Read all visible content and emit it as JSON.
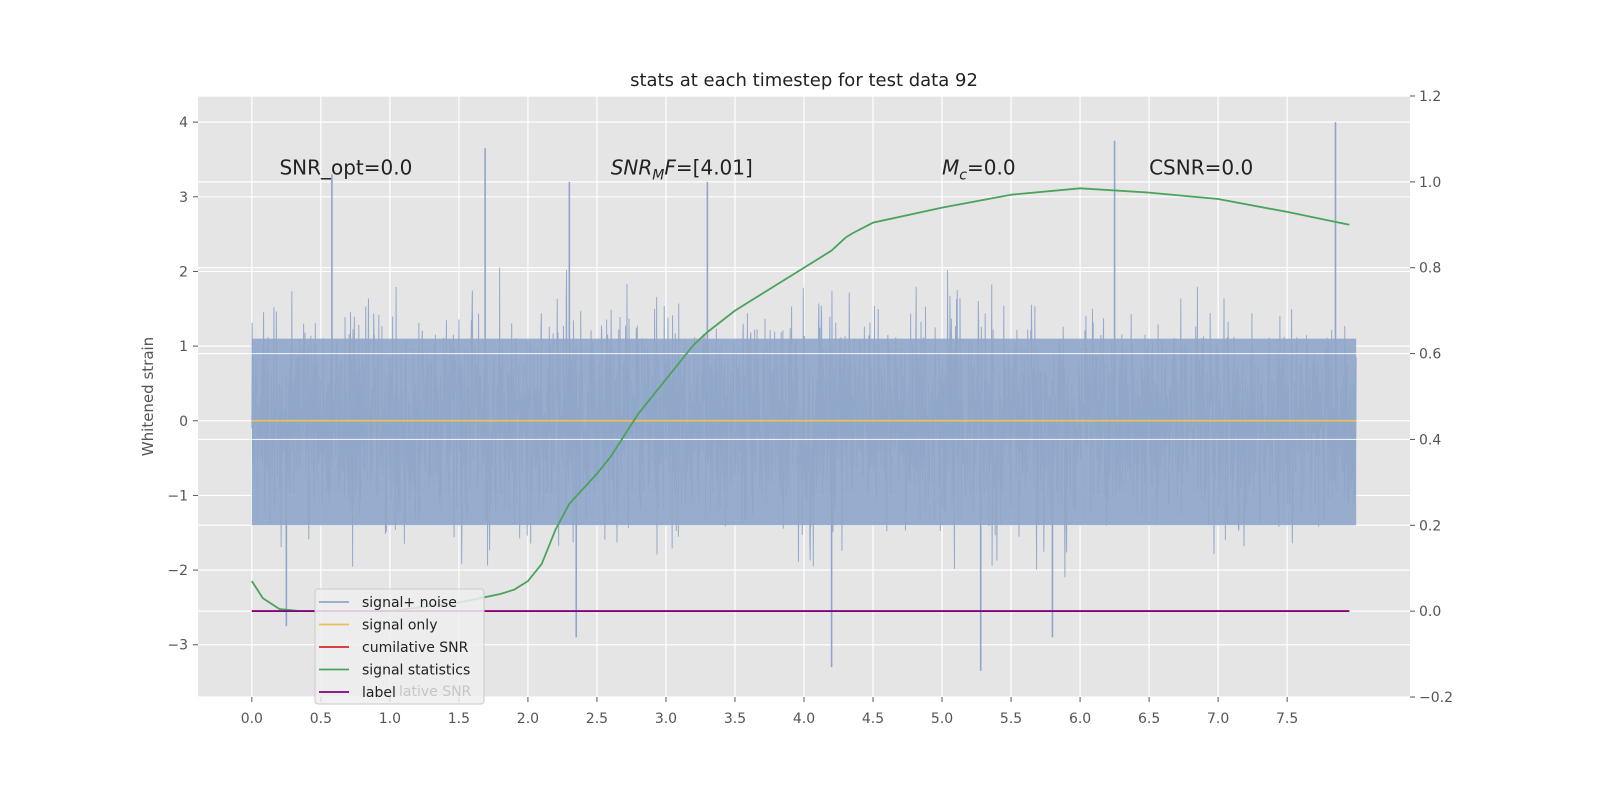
{
  "chart_data": {
    "type": "line",
    "title": "stats at each timestep for test data 92",
    "ylabel": "Whitened strain",
    "xlim": [
      -0.39,
      8.39
    ],
    "ylim": [
      -3.7,
      4.35
    ],
    "y2lim": [
      -0.2,
      1.2
    ],
    "grid": true,
    "legend_position": "lower-left",
    "x_ticks": [
      0.0,
      0.5,
      1.0,
      1.5,
      2.0,
      2.5,
      3.0,
      3.5,
      4.0,
      4.5,
      5.0,
      5.5,
      6.0,
      6.5,
      7.0,
      7.5
    ],
    "x_tick_labels": [
      "0.0",
      "0.5",
      "1.0",
      "1.5",
      "2.0",
      "2.5",
      "3.0",
      "3.5",
      "4.0",
      "4.5",
      "5.0",
      "5.5",
      "6.0",
      "6.5",
      "7.0",
      "7.5"
    ],
    "y_ticks": [
      -3,
      -2,
      -1,
      0,
      1,
      2,
      3,
      4
    ],
    "y_tick_labels": [
      "−3",
      "−2",
      "−1",
      "0",
      "1",
      "2",
      "3",
      "4"
    ],
    "y2_ticks": [
      -0.2,
      0.0,
      0.2,
      0.4,
      0.6,
      0.8,
      1.0,
      1.2
    ],
    "y2_tick_labels": [
      "−0.2",
      "0.0",
      "0.2",
      "0.4",
      "0.6",
      "0.8",
      "1.0",
      "1.2"
    ],
    "annotations": [
      {
        "id": "snr-opt",
        "parts": [
          {
            "t": "SNR_opt=0.0",
            "i": false
          }
        ],
        "x": 0.2,
        "y": 3.3
      },
      {
        "id": "snr-mf",
        "parts": [
          {
            "t": "SNR",
            "i": true
          },
          {
            "t": "M",
            "i": true,
            "sub": true
          },
          {
            "t": "F",
            "i": true
          },
          {
            "t": "=[4.01]",
            "i": false
          }
        ],
        "x": 2.6,
        "y": 3.3
      },
      {
        "id": "mc",
        "parts": [
          {
            "t": "M",
            "i": true
          },
          {
            "t": "c",
            "i": true,
            "sub": true
          },
          {
            "t": "=0.0",
            "i": false
          }
        ],
        "x": 5.0,
        "y": 3.3
      },
      {
        "id": "csnr",
        "parts": [
          {
            "t": "CSNR=0.0",
            "i": false
          }
        ],
        "x": 6.5,
        "y": 3.3
      }
    ],
    "series": [
      {
        "name": "signal+ noise",
        "color": "#8fa6ca",
        "axis": "left",
        "x_range": [
          0.0,
          8.0
        ],
        "y_range_typical": [
          -1.4,
          1.1
        ],
        "peaks": [
          {
            "x": 0.58,
            "y": 3.3
          },
          {
            "x": 1.69,
            "y": 3.65
          },
          {
            "x": 2.3,
            "y": 3.2
          },
          {
            "x": 3.3,
            "y": 3.2
          },
          {
            "x": 6.25,
            "y": 3.75
          },
          {
            "x": 7.85,
            "y": 4.0
          },
          {
            "x": 2.35,
            "y": -2.9
          },
          {
            "x": 4.2,
            "y": -3.3
          },
          {
            "x": 5.28,
            "y": -3.35
          },
          {
            "x": 5.8,
            "y": -2.9
          },
          {
            "x": 0.25,
            "y": -2.75
          }
        ]
      },
      {
        "name": "signal only",
        "color": "#eac05a",
        "axis": "left",
        "x": [
          0.0,
          8.0
        ],
        "y": [
          0.0,
          0.0
        ]
      },
      {
        "name": "cumilative SNR",
        "color": "#d62728",
        "axis": "right",
        "x": [
          0.0,
          7.95
        ],
        "y": [
          0.0,
          0.0
        ]
      },
      {
        "name": "signal statistics",
        "color": "#4aa35b",
        "axis": "right",
        "x": [
          0.0,
          0.08,
          0.2,
          0.35,
          0.5,
          1.0,
          1.5,
          1.8,
          1.9,
          2.0,
          2.1,
          2.2,
          2.3,
          2.5,
          2.6,
          2.7,
          2.8,
          3.0,
          3.2,
          3.3,
          3.5,
          3.8,
          4.0,
          4.2,
          4.3,
          4.35,
          4.5,
          5.0,
          5.5,
          6.0,
          6.5,
          7.0,
          7.5,
          7.95
        ],
        "y": [
          0.07,
          0.03,
          0.005,
          0.0,
          0.0,
          0.0,
          0.02,
          0.04,
          0.05,
          0.07,
          0.11,
          0.19,
          0.25,
          0.32,
          0.36,
          0.41,
          0.46,
          0.54,
          0.62,
          0.65,
          0.7,
          0.76,
          0.8,
          0.84,
          0.87,
          0.88,
          0.905,
          0.94,
          0.97,
          0.985,
          0.975,
          0.96,
          0.93,
          0.9
        ]
      },
      {
        "name": "label",
        "color": "#800080",
        "axis": "right",
        "x": [
          0.0,
          7.95
        ],
        "y": [
          0.0,
          0.0
        ]
      }
    ],
    "legend_residue": "lative SNR"
  }
}
